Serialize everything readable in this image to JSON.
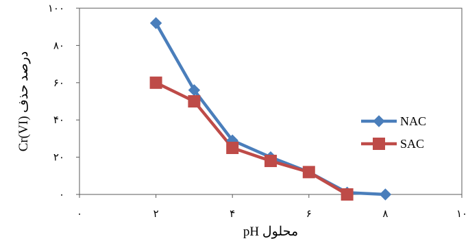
{
  "chart_data": {
    "type": "line",
    "xlabel": "pH محلول",
    "ylabel": "Cr(VI) درصد حذف",
    "xlim": [
      0,
      10
    ],
    "ylim": [
      0,
      100
    ],
    "x_ticks": [
      0,
      2,
      4,
      6,
      8,
      10
    ],
    "y_ticks": [
      0,
      20,
      40,
      60,
      80,
      100
    ],
    "x_tick_labels": [
      "۰",
      "۲",
      "۴",
      "۶",
      "۸",
      "۱۰"
    ],
    "y_tick_labels": [
      "۰",
      "۲۰",
      "۴۰",
      "۶۰",
      "۸۰",
      "۱۰۰"
    ],
    "grid": false,
    "legend_position": "right",
    "series": [
      {
        "name": "NAC",
        "color": "#4a7ebb",
        "marker": "diamond",
        "x": [
          2,
          3,
          4,
          5,
          6,
          7,
          8
        ],
        "y": [
          92,
          56,
          29,
          20,
          12,
          1,
          0
        ]
      },
      {
        "name": "SAC",
        "color": "#be4b48",
        "marker": "square",
        "x": [
          2,
          3,
          4,
          5,
          6,
          7
        ],
        "y": [
          60,
          50,
          25,
          18,
          12,
          0
        ]
      }
    ]
  }
}
